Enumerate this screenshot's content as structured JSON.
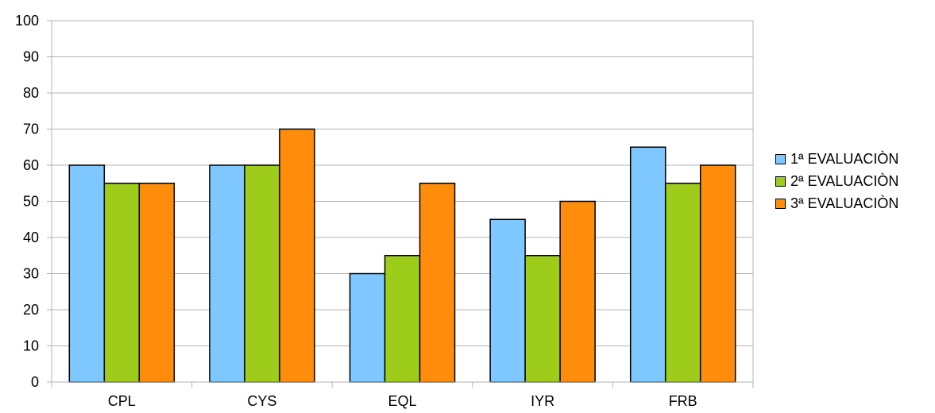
{
  "chart_data": {
    "type": "bar",
    "categories": [
      "CPL",
      "CYS",
      "EQL",
      "IYR",
      "FRB"
    ],
    "series": [
      {
        "name": "1ª EVALUACIÒN",
        "color": "#7fc8ff",
        "values": [
          60,
          60,
          30,
          45,
          65
        ]
      },
      {
        "name": "2ª EVALUACIÒN",
        "color": "#9dcc1a",
        "values": [
          55,
          60,
          35,
          35,
          55
        ]
      },
      {
        "name": "3ª EVALUACIÒN",
        "color": "#ff8c0a",
        "values": [
          55,
          70,
          55,
          50,
          60
        ]
      }
    ],
    "ylim": [
      0,
      100
    ],
    "yticks": [
      0,
      10,
      20,
      30,
      40,
      50,
      60,
      70,
      80,
      90,
      100
    ],
    "grid": true,
    "legend_position": "right"
  }
}
